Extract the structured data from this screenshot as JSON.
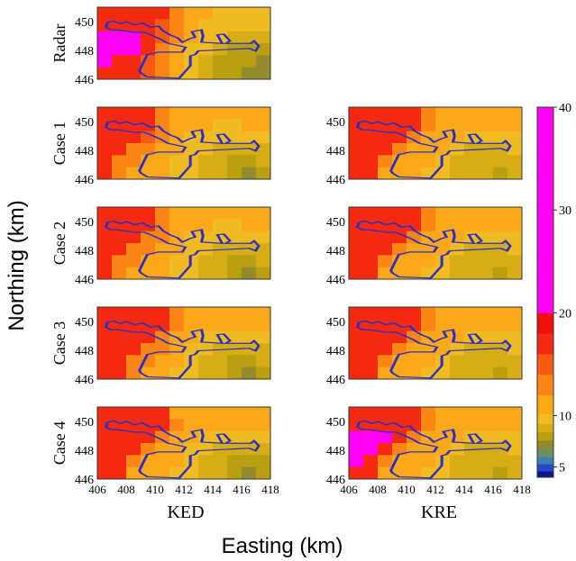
{
  "chart_data": {
    "type": "heatmap",
    "xlabel": "Easting (km)",
    "ylabel": "Northing (km)",
    "column_labels": [
      "KED",
      "KRE"
    ],
    "row_labels": [
      "Radar",
      "Case 1",
      "Case 2",
      "Case 3",
      "Case 4"
    ],
    "xlim": [
      406,
      418
    ],
    "ylim": [
      446,
      451
    ],
    "x_ticks": [
      "406",
      "408",
      "410",
      "412",
      "414",
      "416",
      "418"
    ],
    "y_ticks": [
      "446",
      "448",
      "450"
    ],
    "colorbar": {
      "min": 4,
      "max": 40,
      "ticks": [
        "5",
        "10",
        "20",
        "30",
        "40"
      ],
      "bands": [
        {
          "from": 4,
          "to": 4.6,
          "color": "#0a1590"
        },
        {
          "from": 4.6,
          "to": 5.3,
          "color": "#2547c8"
        },
        {
          "from": 5.3,
          "to": 6.0,
          "color": "#3f7fb0"
        },
        {
          "from": 6.0,
          "to": 6.8,
          "color": "#6a8f60"
        },
        {
          "from": 6.8,
          "to": 7.6,
          "color": "#938a2e"
        },
        {
          "from": 7.6,
          "to": 8.4,
          "color": "#b9a010"
        },
        {
          "from": 8.4,
          "to": 9.2,
          "color": "#d6ad14"
        },
        {
          "from": 9.2,
          "to": 10.2,
          "color": "#f0bb20"
        },
        {
          "from": 10.2,
          "to": 12.0,
          "color": "#fba818"
        },
        {
          "from": 12.0,
          "to": 14.0,
          "color": "#fb8515"
        },
        {
          "from": 14.0,
          "to": 16.0,
          "color": "#f85a12"
        },
        {
          "from": 16.0,
          "to": 18.0,
          "color": "#f42a10"
        },
        {
          "from": 18.0,
          "to": 20.0,
          "color": "#f10f0f"
        },
        {
          "from": 20.0,
          "to": 40.0,
          "color": "#ff00f5"
        }
      ]
    },
    "panels": [
      {
        "row": 0,
        "col": 0,
        "grid": [
          [
            16,
            16,
            16,
            16,
            16,
            12,
            11,
            11,
            10,
            10,
            10,
            10
          ],
          [
            17,
            17,
            16,
            16,
            15,
            12,
            11,
            10,
            10,
            9.5,
            10,
            10
          ],
          [
            22,
            22,
            22,
            17,
            15,
            12,
            11,
            10,
            9.5,
            9,
            9,
            9
          ],
          [
            22,
            22,
            22,
            16,
            13,
            11,
            10,
            9.5,
            9,
            8,
            8,
            8
          ],
          [
            22,
            17,
            16,
            15,
            12,
            11,
            10,
            9,
            8,
            7.8,
            7.8,
            7.2
          ],
          [
            17,
            16,
            16,
            15,
            12,
            11,
            10,
            9,
            8,
            7.8,
            7.5,
            7
          ]
        ]
      },
      {
        "row": 1,
        "col": 0,
        "grid": [
          [
            16,
            16,
            16,
            16,
            12,
            11,
            11,
            10.5,
            10.5,
            10.5,
            11,
            11
          ],
          [
            17,
            16,
            16,
            16,
            12,
            11,
            10.5,
            10.5,
            10,
            10,
            10.5,
            11
          ],
          [
            17,
            16,
            16,
            14,
            12,
            11,
            10,
            10,
            9.5,
            9.5,
            9.5,
            10
          ],
          [
            17,
            16,
            13,
            12,
            11,
            10.5,
            10,
            9.5,
            9,
            8.5,
            8.5,
            9
          ],
          [
            17,
            12,
            12,
            11,
            11,
            10,
            9.5,
            9,
            8.5,
            8,
            8,
            8.5
          ],
          [
            17,
            12,
            11,
            11,
            10.5,
            10,
            9.5,
            9,
            8.5,
            8,
            7.5,
            8
          ]
        ]
      },
      {
        "row": 1,
        "col": 1,
        "grid": [
          [
            17,
            17,
            17,
            17,
            16,
            12,
            11,
            11,
            11,
            11,
            11,
            11
          ],
          [
            17,
            17,
            17,
            17,
            16,
            12,
            11,
            11,
            10.5,
            10.5,
            10.5,
            11
          ],
          [
            17,
            17,
            17,
            16,
            13,
            11,
            11,
            10.5,
            10,
            9.5,
            10,
            10
          ],
          [
            17,
            17,
            16,
            12,
            11,
            11,
            10.5,
            10,
            9,
            9,
            9,
            9.5
          ],
          [
            17,
            16,
            12,
            11,
            11,
            10.5,
            10,
            9,
            8.5,
            8.5,
            8.5,
            9
          ],
          [
            17,
            16,
            11,
            11,
            10.5,
            10,
            9.5,
            9,
            8.5,
            8.5,
            8,
            8.5
          ]
        ]
      },
      {
        "row": 2,
        "col": 0,
        "grid": [
          [
            17,
            17,
            17,
            16,
            12,
            11,
            11,
            11,
            11,
            11,
            11,
            11
          ],
          [
            17,
            17,
            17,
            16,
            12,
            11,
            10.5,
            10.5,
            10,
            10,
            10.5,
            11
          ],
          [
            17,
            17,
            16,
            13,
            12,
            11,
            10,
            10,
            9.5,
            9.5,
            9.5,
            10
          ],
          [
            17,
            16,
            13,
            12,
            11,
            10.5,
            10,
            9.5,
            9,
            8.5,
            8.5,
            9
          ],
          [
            17,
            12,
            12,
            11,
            11,
            10,
            9.5,
            9,
            8.5,
            8,
            8,
            8.5
          ],
          [
            17,
            12,
            11,
            11,
            10.5,
            10,
            9.5,
            9,
            8.5,
            8,
            7.5,
            8
          ]
        ]
      },
      {
        "row": 2,
        "col": 1,
        "grid": [
          [
            17,
            17,
            17,
            17,
            16,
            12,
            11,
            11,
            11,
            11,
            11,
            11
          ],
          [
            17,
            17,
            17,
            17,
            16,
            12,
            11,
            11,
            10.5,
            10.5,
            10.5,
            11
          ],
          [
            17,
            17,
            17,
            16,
            13,
            11,
            11,
            10.5,
            10,
            9.5,
            10,
            10
          ],
          [
            17,
            17,
            16,
            12,
            11,
            11,
            10.5,
            10,
            9,
            9,
            9,
            9.5
          ],
          [
            17,
            16,
            12,
            11,
            11,
            10.5,
            10,
            9,
            8.5,
            8.5,
            8.5,
            9
          ],
          [
            17,
            16,
            11,
            11,
            10.5,
            10,
            9.5,
            9,
            8.5,
            8.5,
            8,
            8.5
          ]
        ]
      },
      {
        "row": 3,
        "col": 0,
        "grid": [
          [
            17,
            17,
            17,
            17,
            16,
            12,
            11,
            11,
            11,
            11,
            11,
            11
          ],
          [
            17,
            17,
            17,
            17,
            16,
            12,
            11,
            10.5,
            10.5,
            10.5,
            10.5,
            11
          ],
          [
            17,
            17,
            17,
            16,
            13,
            11,
            11,
            10,
            9.5,
            9.5,
            9.5,
            10
          ],
          [
            17,
            17,
            16,
            13,
            12,
            11,
            10,
            9.5,
            9,
            8.5,
            8.5,
            9
          ],
          [
            17,
            16,
            12,
            12,
            11,
            10.5,
            10,
            9,
            8.5,
            8,
            8,
            8.5
          ],
          [
            17,
            16,
            12,
            11,
            11,
            10,
            9.5,
            9,
            8.5,
            8,
            7.5,
            8
          ]
        ]
      },
      {
        "row": 3,
        "col": 1,
        "grid": [
          [
            17,
            17,
            17,
            17,
            16,
            12,
            11,
            11,
            11,
            11,
            11,
            11
          ],
          [
            17,
            17,
            17,
            17,
            16,
            12,
            11,
            11,
            10.5,
            10.5,
            10.5,
            11
          ],
          [
            17,
            17,
            17,
            16,
            13,
            11,
            11,
            10.5,
            10,
            9.5,
            10,
            10
          ],
          [
            17,
            17,
            16,
            12,
            11,
            11,
            10.5,
            10,
            9,
            9,
            9,
            9.5
          ],
          [
            17,
            16,
            12,
            11,
            11,
            10.5,
            10,
            9,
            8.5,
            8.5,
            8.5,
            9
          ],
          [
            17,
            16,
            11,
            11,
            10.5,
            10,
            9.5,
            9,
            8.5,
            8.5,
            8,
            8.5
          ]
        ]
      },
      {
        "row": 4,
        "col": 0,
        "grid": [
          [
            17,
            17,
            17,
            17,
            17,
            11,
            11,
            11,
            11,
            11,
            11,
            11
          ],
          [
            17,
            17,
            17,
            17,
            17,
            12,
            11,
            10.5,
            10.5,
            10.5,
            10.5,
            11
          ],
          [
            17,
            17,
            17,
            17,
            13,
            11,
            10.5,
            10,
            9.5,
            9.5,
            9.5,
            10
          ],
          [
            17,
            17,
            16,
            12,
            11,
            11,
            10,
            9.5,
            9,
            8.5,
            8.5,
            9
          ],
          [
            17,
            16,
            12,
            11,
            11,
            10.5,
            9.5,
            9,
            8.5,
            8,
            8,
            8
          ],
          [
            17,
            16,
            11,
            11,
            10.5,
            10,
            9.5,
            9,
            8.5,
            8,
            7.5,
            7.8
          ]
        ]
      },
      {
        "row": 4,
        "col": 1,
        "grid": [
          [
            17,
            17,
            17,
            17,
            17,
            12,
            11,
            11,
            11,
            11,
            11,
            11
          ],
          [
            17,
            17,
            17,
            17,
            16,
            12,
            11,
            11,
            10.5,
            10.5,
            10.5,
            11
          ],
          [
            22,
            22,
            22,
            17,
            13,
            11,
            11,
            10.5,
            10,
            9.5,
            10,
            10
          ],
          [
            22,
            22,
            17,
            12,
            11,
            11,
            10.5,
            10,
            9,
            9,
            9,
            9.5
          ],
          [
            22,
            17,
            12,
            11,
            11,
            10.5,
            10,
            9,
            8.5,
            8.5,
            8.5,
            9
          ],
          [
            17,
            16,
            11,
            11,
            10.5,
            10,
            9.5,
            9,
            8.5,
            8.5,
            8,
            8.5
          ]
        ]
      }
    ]
  }
}
